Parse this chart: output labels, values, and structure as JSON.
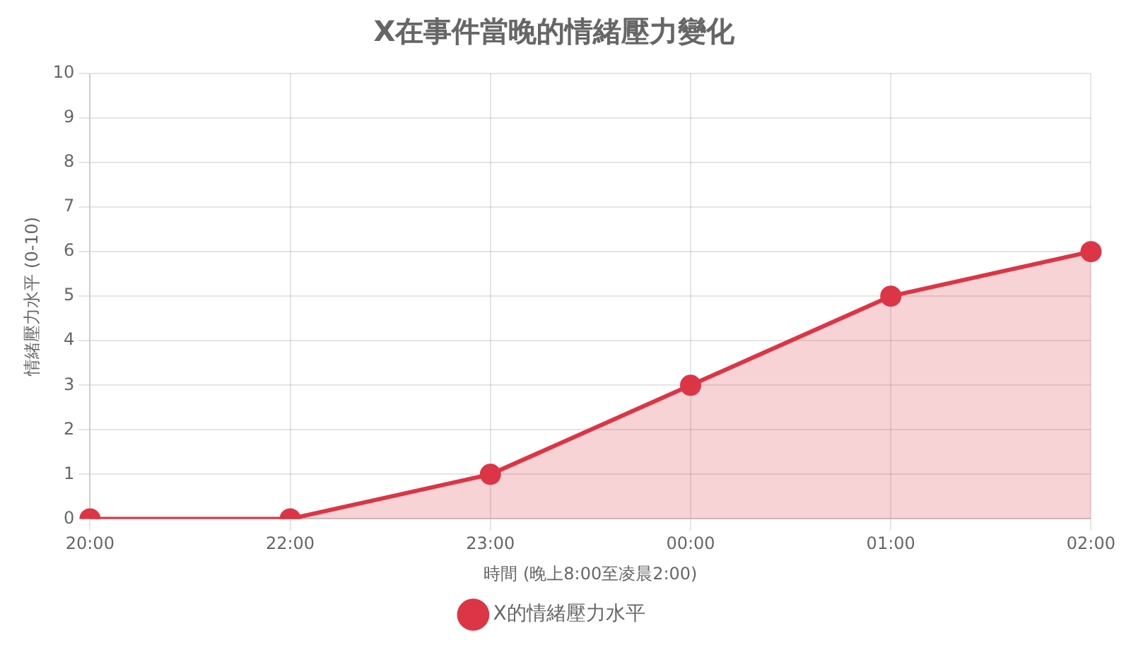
{
  "chart_data": {
    "type": "area",
    "title": "X在事件當晚的情緒壓力變化",
    "xlabel": "時間 (晚上8:00至凌晨2:00)",
    "ylabel": "情緒壓力水平 (0-10)",
    "categories": [
      "20:00",
      "22:00",
      "23:00",
      "00:00",
      "01:00",
      "02:00"
    ],
    "series": [
      {
        "name": "X的情緒壓力水平",
        "color": "#dc3545",
        "values": [
          0,
          0,
          1,
          3,
          5,
          6
        ]
      }
    ],
    "ylim": [
      0,
      10
    ],
    "yticks": [
      0,
      1,
      2,
      3,
      4,
      5,
      6,
      7,
      8,
      9,
      10
    ],
    "grid": true,
    "legend": "bottom",
    "marker": "circle"
  }
}
